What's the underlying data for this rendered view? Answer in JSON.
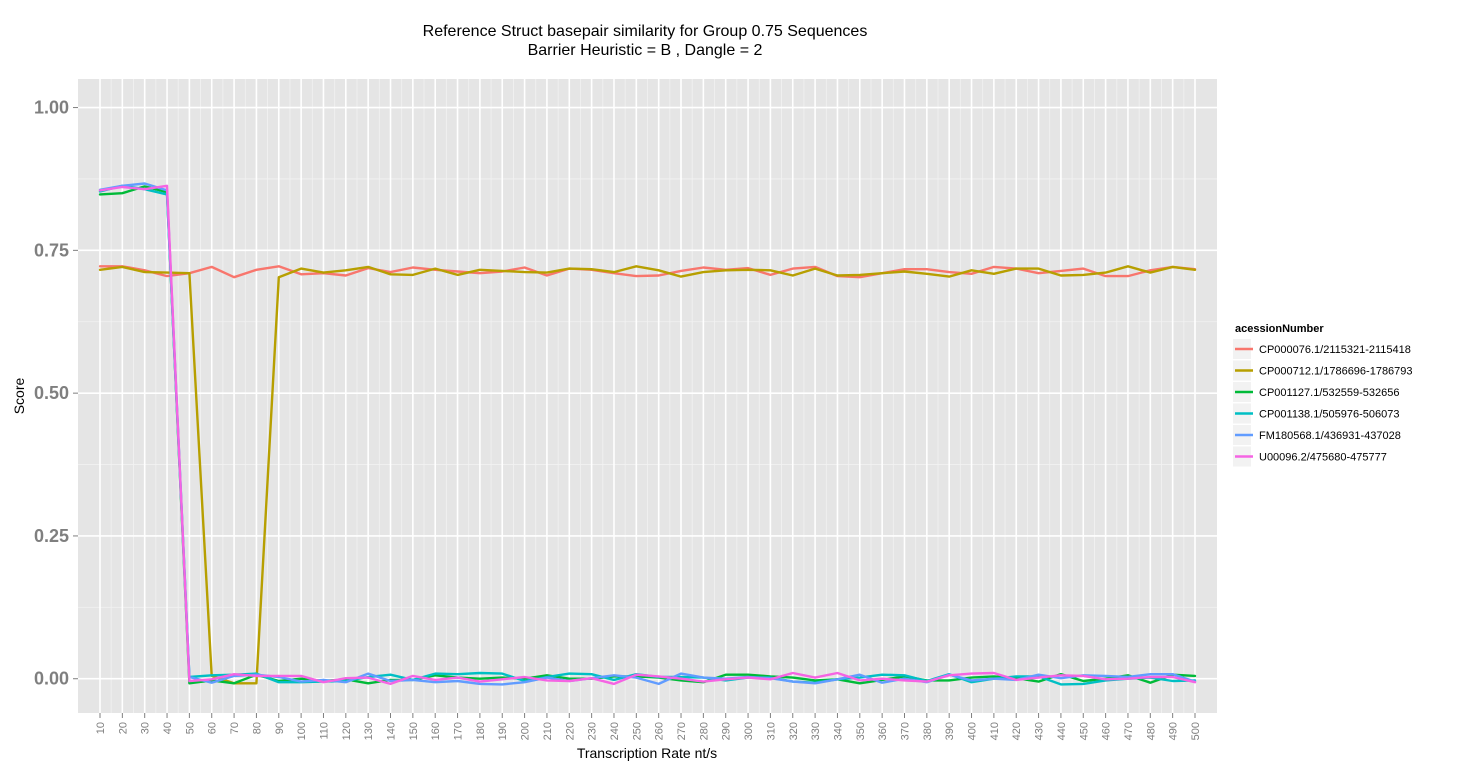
{
  "chart_data": {
    "type": "line",
    "title": "Reference Struct basepair similarity for Group 0.75 Sequences",
    "subtitle": "Barrier Heuristic =  B  , Dangle =  2",
    "xlabel": "Transcription Rate nt/s",
    "ylabel": "Score",
    "y_ticks": [
      0.0,
      0.25,
      0.5,
      0.75,
      1.0
    ],
    "y_tick_labels": [
      "0.00",
      "0.25",
      "0.50",
      "0.75",
      "1.00"
    ],
    "ylim": [
      -0.06,
      1.05
    ],
    "x": [
      10,
      20,
      30,
      40,
      50,
      60,
      70,
      80,
      90,
      100,
      110,
      120,
      130,
      140,
      150,
      160,
      170,
      180,
      190,
      200,
      210,
      220,
      230,
      240,
      250,
      260,
      270,
      280,
      290,
      300,
      310,
      320,
      330,
      340,
      350,
      360,
      370,
      380,
      390,
      400,
      410,
      420,
      430,
      440,
      450,
      460,
      470,
      480,
      490,
      500
    ],
    "x_tick_labels": [
      "10",
      "20",
      "30",
      "40",
      "50",
      "60",
      "70",
      "80",
      "90",
      "100",
      "110",
      "120",
      "130",
      "140",
      "150",
      "160",
      "170",
      "180",
      "190",
      "200",
      "210",
      "220",
      "230",
      "240",
      "250",
      "260",
      "270",
      "280",
      "290",
      "300",
      "310",
      "320",
      "330",
      "340",
      "350",
      "360",
      "370",
      "380",
      "390",
      "400",
      "410",
      "420",
      "430",
      "440",
      "450",
      "460",
      "470",
      "480",
      "490",
      "500"
    ],
    "grid": true,
    "legend_position": "right",
    "legend_title": "acessionNumber",
    "series": [
      {
        "name": "CP000076.1/2115321-2115418",
        "color": "#F8766D",
        "values": [
          0.722,
          0.722,
          0.715,
          0.705,
          0.71,
          0.721,
          0.703,
          0.716,
          0.722,
          0.708,
          0.71,
          0.706,
          0.719,
          0.712,
          0.72,
          0.716,
          0.713,
          0.71,
          0.713,
          0.72,
          0.706,
          0.718,
          0.716,
          0.71,
          0.705,
          0.706,
          0.714,
          0.72,
          0.716,
          0.719,
          0.707,
          0.718,
          0.721,
          0.705,
          0.703,
          0.71,
          0.717,
          0.717,
          0.712,
          0.709,
          0.721,
          0.718,
          0.71,
          0.714,
          0.718,
          0.705,
          0.705,
          0.715,
          0.721,
          0.717
        ]
      },
      {
        "name": "CP000712.1/1786696-1786793",
        "color": "#B79F00",
        "values": [
          0.716,
          0.721,
          0.712,
          0.711,
          0.71,
          0.005,
          -0.008,
          -0.008,
          0.703,
          0.718,
          0.711,
          0.715,
          0.721,
          0.708,
          0.707,
          0.718,
          0.707,
          0.716,
          0.714,
          0.712,
          0.711,
          0.718,
          0.717,
          0.712,
          0.722,
          0.715,
          0.704,
          0.712,
          0.715,
          0.716,
          0.715,
          0.706,
          0.718,
          0.706,
          0.707,
          0.71,
          0.713,
          0.709,
          0.704,
          0.715,
          0.709,
          0.718,
          0.718,
          0.706,
          0.707,
          0.711,
          0.722,
          0.711,
          0.721,
          0.716
        ]
      },
      {
        "name": "CP001127.1/532559-532656",
        "color": "#00BA38",
        "values": [
          0.848,
          0.85,
          0.862,
          0.852,
          -0.008,
          -0.003,
          -0.008,
          0.007,
          -0.004,
          0.0,
          -0.004,
          -0.001,
          -0.008,
          -0.002,
          -0.002,
          0.006,
          0.002,
          0.0,
          0.002,
          0.0,
          0.006,
          0.0,
          0.0,
          0.004,
          0.004,
          0.002,
          -0.003,
          -0.006,
          0.007,
          0.007,
          0.004,
          0.002,
          -0.003,
          -0.001,
          -0.008,
          -0.002,
          0.004,
          -0.003,
          -0.003,
          0.002,
          0.004,
          0.001,
          -0.005,
          0.008,
          -0.004,
          0.0,
          0.006,
          -0.007,
          0.007,
          0.005
        ]
      },
      {
        "name": "CP001138.1/505976-506073",
        "color": "#00BFC4",
        "values": [
          0.853,
          0.863,
          0.857,
          0.848,
          0.003,
          0.006,
          0.007,
          0.009,
          -0.006,
          -0.006,
          -0.005,
          -0.004,
          0.003,
          0.007,
          -0.002,
          0.009,
          0.008,
          0.01,
          0.009,
          -0.004,
          0.003,
          0.009,
          0.008,
          -0.002,
          0.008,
          0.003,
          0.003,
          0.002,
          -0.003,
          0.002,
          0.002,
          -0.005,
          -0.007,
          -0.001,
          0.002,
          0.007,
          0.006,
          -0.004,
          0.008,
          -0.006,
          0.0,
          0.004,
          0.004,
          -0.01,
          -0.009,
          -0.003,
          0.0,
          0.002,
          -0.004,
          -0.003
        ]
      },
      {
        "name": "FM180568.1/436931-437028",
        "color": "#619CFF",
        "values": [
          0.856,
          0.863,
          0.867,
          0.855,
          0.003,
          -0.007,
          0.005,
          0.007,
          0.003,
          -0.005,
          -0.002,
          -0.006,
          0.009,
          -0.004,
          -0.002,
          -0.006,
          -0.004,
          -0.009,
          -0.01,
          -0.006,
          0.002,
          -0.004,
          0.001,
          0.006,
          0.002,
          -0.009,
          0.009,
          0.002,
          0.0,
          0.003,
          0.001,
          -0.005,
          -0.008,
          -0.001,
          0.007,
          -0.007,
          0.0,
          -0.006,
          0.007,
          -0.003,
          0.0,
          -0.002,
          0.007,
          0.001,
          0.006,
          0.005,
          0.003,
          0.008,
          0.008,
          -0.005
        ]
      },
      {
        "name": "U00096.2/475680-475777",
        "color": "#F564E3",
        "values": [
          0.855,
          0.861,
          0.857,
          0.863,
          -0.004,
          -0.001,
          0.008,
          0.005,
          0.005,
          0.005,
          -0.006,
          0.001,
          0.002,
          -0.009,
          0.005,
          -0.002,
          0.002,
          -0.005,
          -0.001,
          0.003,
          -0.003,
          -0.004,
          0.001,
          -0.009,
          0.007,
          0.004,
          0.0,
          -0.005,
          -0.001,
          0.002,
          -0.001,
          0.01,
          0.002,
          0.01,
          -0.003,
          0.0,
          -0.003,
          -0.005,
          0.006,
          0.009,
          0.01,
          -0.002,
          0.002,
          0.006,
          0.005,
          -0.001,
          0.0,
          0.003,
          0.003,
          -0.006
        ]
      }
    ]
  }
}
